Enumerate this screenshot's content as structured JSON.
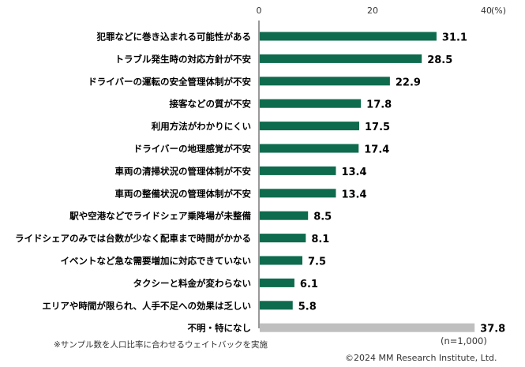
{
  "chart_data": {
    "type": "bar",
    "orientation": "horizontal",
    "unit_label": "(%)",
    "xlim": [
      0,
      40
    ],
    "ticks": [
      0,
      20,
      40
    ],
    "grid": false,
    "categories": [
      "犯罪などに巻き込まれる可能性がある",
      "トラブル発生時の対応方針が不安",
      "ドライバーの運転の安全管理体制が不安",
      "接客などの質が不安",
      "利用方法がわかりにくい",
      "ドライバーの地理感覚が不安",
      "車両の清掃状況の管理体制が不安",
      "車両の整備状況の管理体制が不安",
      "駅や空港などでライドシェア乗降場が未整備",
      "ライドシェアのみでは台数が少なく配車まで時間がかかる",
      "イベントなど急な需要増加に対応できていない",
      "タクシーと料金が変わらない",
      "エリアや時間が限られ、人手不足への効果は乏しい",
      "不明・特になし"
    ],
    "values": [
      31.1,
      28.5,
      22.9,
      17.8,
      17.5,
      17.4,
      13.4,
      13.4,
      8.5,
      8.1,
      7.5,
      6.1,
      5.8,
      37.8
    ],
    "value_labels": [
      "31.1",
      "28.5",
      "22.9",
      "17.8",
      "17.5",
      "17.4",
      "13.4",
      "13.4",
      "8.5",
      "8.1",
      "7.5",
      "6.1",
      "5.8",
      "37.8"
    ],
    "colors": {
      "bar": "#0e6b4d",
      "last_bar": "#bfbfbf",
      "axis": "#333333",
      "text": "#000000"
    }
  },
  "notes": {
    "sample": "(n=1,000)",
    "weighting": "※サンプル数を人口比率に合わせるウェイトバックを実施",
    "copyright": "©2024 MM Research Institute, Ltd."
  }
}
